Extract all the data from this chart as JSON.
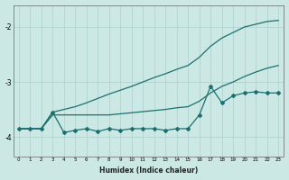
{
  "xlabel": "Humidex (Indice chaleur)",
  "x": [
    0,
    1,
    2,
    3,
    4,
    5,
    6,
    7,
    8,
    9,
    10,
    11,
    12,
    13,
    14,
    15,
    16,
    17,
    18,
    19,
    20,
    21,
    22,
    23
  ],
  "y_top": [
    -3.85,
    -3.85,
    -3.85,
    -3.55,
    -3.5,
    -3.45,
    -3.38,
    -3.3,
    -3.22,
    -3.15,
    -3.08,
    -3.0,
    -2.92,
    -2.85,
    -2.77,
    -2.7,
    -2.55,
    -2.35,
    -2.2,
    -2.1,
    -2.0,
    -1.95,
    -1.9,
    -1.88
  ],
  "y_mid": [
    -3.85,
    -3.85,
    -3.85,
    -3.6,
    -3.6,
    -3.6,
    -3.6,
    -3.6,
    -3.6,
    -3.58,
    -3.56,
    -3.54,
    -3.52,
    -3.5,
    -3.47,
    -3.45,
    -3.35,
    -3.2,
    -3.08,
    -3.0,
    -2.9,
    -2.82,
    -2.75,
    -2.7
  ],
  "y_jag": [
    -3.85,
    -3.85,
    -3.85,
    -3.55,
    -3.92,
    -3.88,
    -3.85,
    -3.9,
    -3.85,
    -3.88,
    -3.85,
    -3.85,
    -3.85,
    -3.88,
    -3.85,
    -3.85,
    -3.6,
    -3.08,
    -3.38,
    -3.25,
    -3.2,
    -3.18,
    -3.2,
    -3.2
  ],
  "ylim": [
    -4.35,
    -1.6
  ],
  "bg_color": "#cce8e4",
  "grid_color": "#aad0cc",
  "line_color": "#1a7070",
  "fig_bg": "#cce8e4"
}
